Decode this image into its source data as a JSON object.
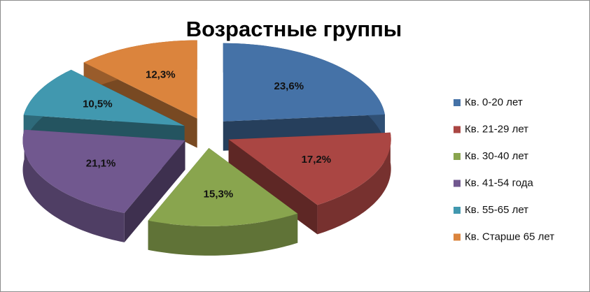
{
  "chart_data": {
    "type": "pie",
    "title": "Возрастные группы",
    "categories": [
      "Кв. 0-20 лет",
      "Кв. 21-29 лет",
      "Кв. 30-40 лет",
      "Кв. 41-54 года",
      "Кв. 55-65 лет",
      "Кв. Старше 65 лет"
    ],
    "values": [
      23.6,
      17.2,
      15.3,
      21.1,
      10.5,
      12.3
    ],
    "value_labels": [
      "23,6%",
      "17,2%",
      "15,3%",
      "21,1%",
      "10,5%",
      "12,3%"
    ],
    "colors": [
      "#4572a7",
      "#aa4643",
      "#89a54e",
      "#71588f",
      "#4198af",
      "#db843d"
    ],
    "legend": "right"
  }
}
